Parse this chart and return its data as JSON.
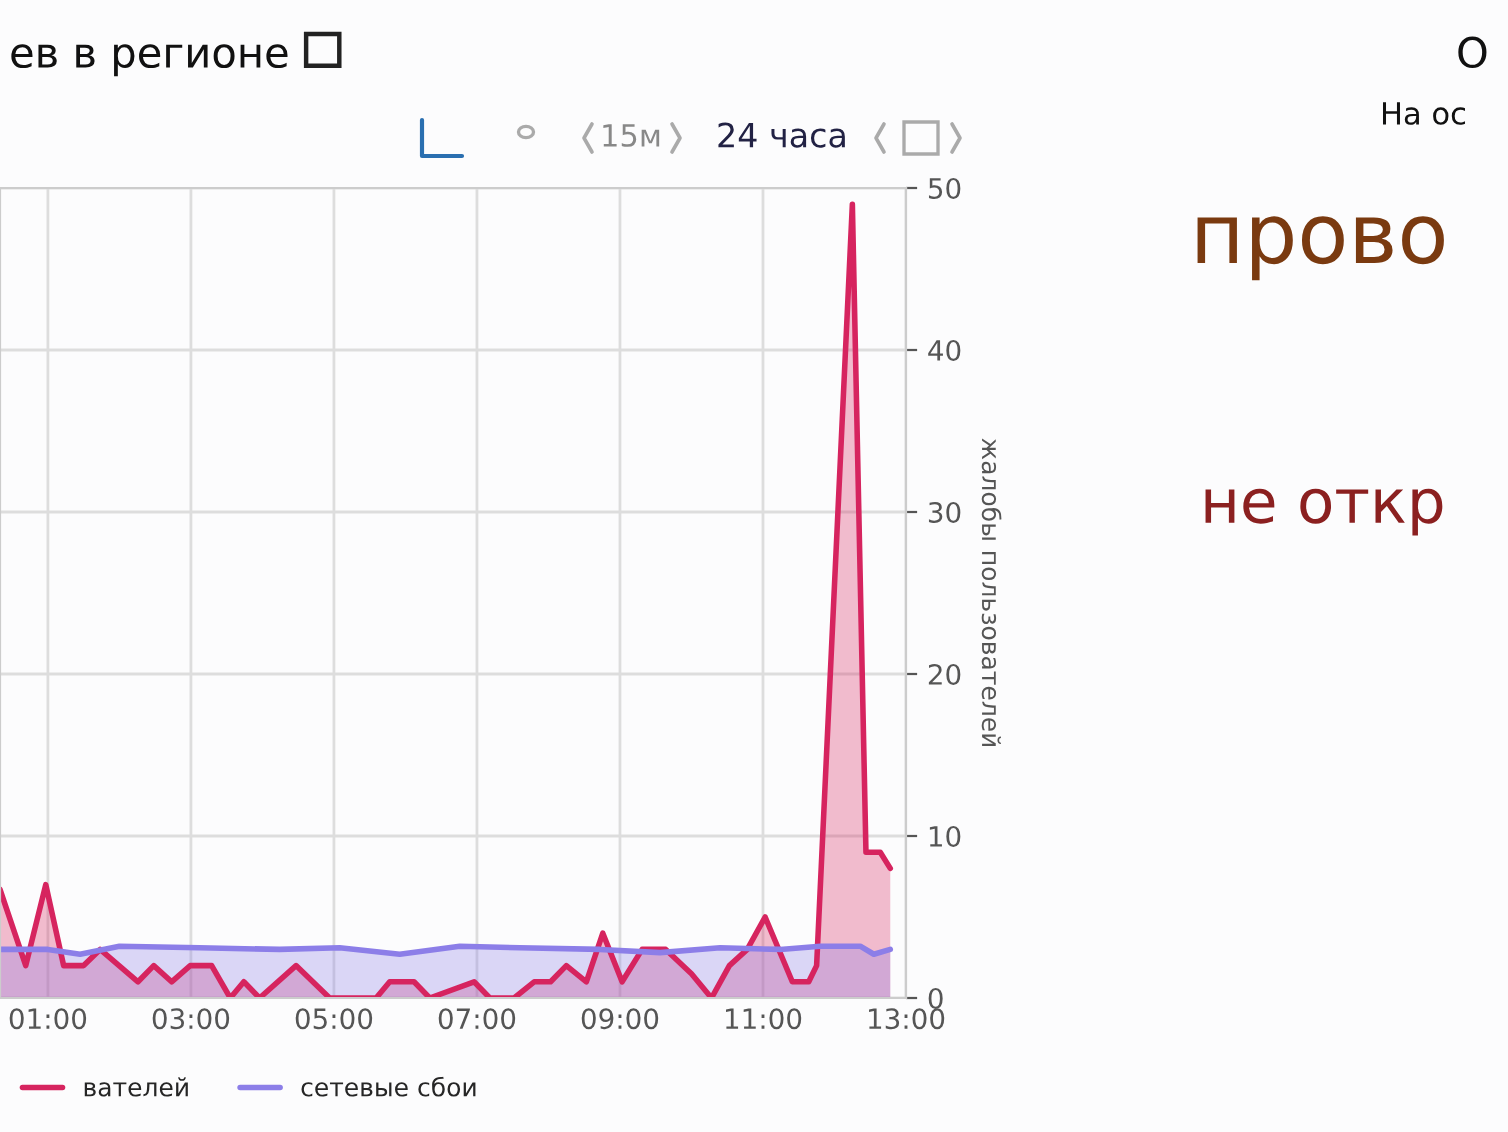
{
  "chart_data": {
    "type": "area",
    "title": "ев в регионе",
    "ylabel": "жалобы пользователей",
    "x": [
      0.33,
      0.69,
      0.97,
      1.22,
      1.5,
      1.73,
      2.26,
      2.48,
      2.73,
      2.99,
      3.29,
      3.55,
      3.74,
      3.96,
      4.47,
      4.94,
      5.59,
      5.78,
      6.12,
      6.34,
      6.96,
      7.18,
      7.24,
      7.52,
      7.8,
      8.03,
      8.25,
      8.53,
      8.76,
      9.03,
      9.31,
      9.64,
      10.0,
      10.28,
      10.53,
      10.78,
      11.03,
      11.41,
      11.64,
      11.75,
      12.25,
      12.44,
      12.64,
      12.78
    ],
    "series": [
      {
        "name": "вателей",
        "color": "#d6245f",
        "values": [
          6.7,
          2,
          7,
          2,
          2,
          3,
          1,
          2,
          1,
          2,
          2,
          0,
          1,
          0,
          2,
          0,
          0,
          1,
          1,
          0,
          1,
          0,
          0,
          0,
          1,
          1,
          2,
          1,
          4,
          1,
          3,
          3,
          1.5,
          0,
          2,
          3,
          5,
          1,
          1,
          2,
          49,
          9,
          9,
          8
        ]
      },
      {
        "name": "сетевые сбои",
        "color": "#8c7ee8",
        "x": [
          0.33,
          1.0,
          1.45,
          2.0,
          3.12,
          4.24,
          5.08,
          5.92,
          6.76,
          7.6,
          8.72,
          9.56,
          10.4,
          11.24,
          11.8,
          12.36,
          12.55,
          12.78
        ],
        "values": [
          3,
          3,
          2.7,
          3.2,
          3.1,
          3,
          3.1,
          2.7,
          3.2,
          3.1,
          3,
          2.8,
          3.1,
          3,
          3.2,
          3.2,
          2.7,
          3
        ]
      }
    ],
    "xlim": [
      0.33,
      13
    ],
    "xticks": [
      {
        "value": 1,
        "label": "01:00"
      },
      {
        "value": 3,
        "label": "03:00"
      },
      {
        "value": 5,
        "label": "05:00"
      },
      {
        "value": 7,
        "label": "07:00"
      },
      {
        "value": 9,
        "label": "09:00"
      },
      {
        "value": 11,
        "label": "11:00"
      },
      {
        "value": 13,
        "label": "13:00"
      }
    ],
    "ylim": [
      0,
      50
    ],
    "yticks": [
      0,
      10,
      20,
      30,
      40,
      50
    ],
    "grid": true,
    "legend": "bottom",
    "annotations": [
      "15м",
      "24 часа",
      "О",
      "На ос",
      "прово",
      "не откр"
    ]
  }
}
